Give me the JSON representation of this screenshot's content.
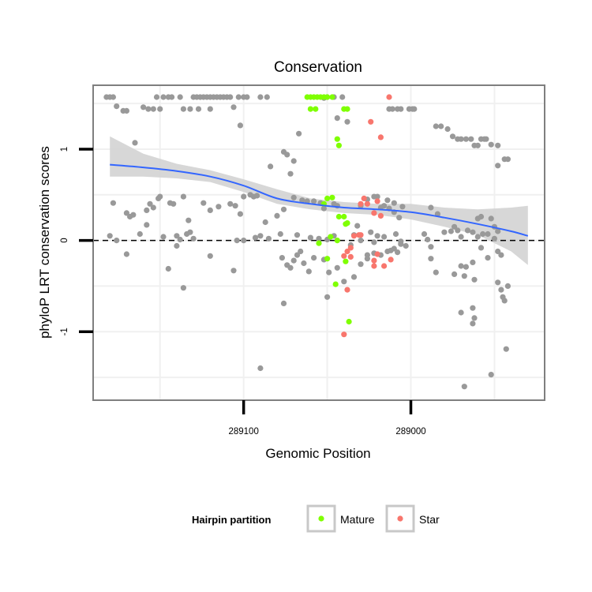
{
  "chart_data": {
    "type": "scatter",
    "title": "Conservation",
    "xlabel": "Genomic Position",
    "ylabel": "phyloP LRT conservation scores",
    "x_reversed": true,
    "xlim": [
      289190,
      288920
    ],
    "ylim": [
      -1.75,
      1.7
    ],
    "x_ticks": [
      289100,
      289000
    ],
    "x_tick_labels": [
      "289100",
      "289000"
    ],
    "y_ticks": [
      -1,
      0,
      1
    ],
    "y_tick_labels": [
      "-1",
      "0",
      "1"
    ],
    "grid": true,
    "reference_line": {
      "y": 0,
      "style": "dashed"
    },
    "legend": {
      "title": "Hairpin partition",
      "position": "bottom",
      "entries": [
        {
          "name": "Mature",
          "color": "#7FFF00"
        },
        {
          "name": "Star",
          "color": "#F8766D"
        }
      ]
    },
    "colors": {
      "none": "#999999",
      "Mature": "#7FFF00",
      "Star": "#F8766D",
      "smooth": "#3366FF",
      "band": "#d3d3d3"
    },
    "smooth": {
      "x": [
        289180,
        289160,
        289140,
        289120,
        289100,
        289080,
        289060,
        289040,
        289020,
        289000,
        288980,
        288960,
        288940,
        288930
      ],
      "y": [
        0.83,
        0.8,
        0.76,
        0.7,
        0.6,
        0.46,
        0.4,
        0.36,
        0.34,
        0.31,
        0.25,
        0.18,
        0.1,
        0.05
      ],
      "lower": [
        0.7,
        0.7,
        0.68,
        0.64,
        0.53,
        0.4,
        0.34,
        0.3,
        0.28,
        0.23,
        0.15,
        0.06,
        -0.12,
        -0.27
      ],
      "upper": [
        1.14,
        0.95,
        0.84,
        0.77,
        0.67,
        0.56,
        0.46,
        0.42,
        0.4,
        0.4,
        0.36,
        0.34,
        0.36,
        0.38
      ]
    },
    "series": [
      {
        "name": "",
        "color": "#999999",
        "points": [
          [
            289182,
            1.57
          ],
          [
            289180,
            1.57
          ],
          [
            289178,
            1.57
          ],
          [
            289176,
            1.47
          ],
          [
            289172,
            1.42
          ],
          [
            289170,
            1.42
          ],
          [
            289165,
            1.07
          ],
          [
            289170,
            0.3
          ],
          [
            289178,
            0.41
          ],
          [
            289180,
            0.05
          ],
          [
            289176,
            0.0
          ],
          [
            289168,
            0.26
          ],
          [
            289166,
            0.28
          ],
          [
            289170,
            -0.15
          ],
          [
            289162,
            0.07
          ],
          [
            289158,
            0.33
          ],
          [
            289156,
            0.4
          ],
          [
            289154,
            0.36
          ],
          [
            289158,
            0.17
          ],
          [
            289151,
            0.46
          ],
          [
            289150,
            0.48
          ],
          [
            289148,
            0.04
          ],
          [
            289145,
            -0.31
          ],
          [
            289144,
            0.41
          ],
          [
            289142,
            0.4
          ],
          [
            289140,
            0.05
          ],
          [
            289140,
            -0.06
          ],
          [
            289138,
            0.01
          ],
          [
            289136,
            -0.52
          ],
          [
            289136,
            0.48
          ],
          [
            289133,
            0.22
          ],
          [
            289132,
            0.09
          ],
          [
            289134,
            0.07
          ],
          [
            289130,
            0.02
          ],
          [
            289160,
            1.46
          ],
          [
            289157,
            1.44
          ],
          [
            289154,
            1.44
          ],
          [
            289152,
            1.57
          ],
          [
            289150,
            1.44
          ],
          [
            289148,
            1.57
          ],
          [
            289145,
            1.57
          ],
          [
            289143,
            1.57
          ],
          [
            289138,
            1.57
          ],
          [
            289136,
            1.44
          ],
          [
            289132,
            1.44
          ],
          [
            289130,
            1.57
          ],
          [
            289128,
            1.57
          ],
          [
            289126,
            1.57
          ],
          [
            289124,
            1.57
          ],
          [
            289122,
            1.57
          ],
          [
            289120,
            1.57
          ],
          [
            289118,
            1.57
          ],
          [
            289116,
            1.57
          ],
          [
            289114,
            1.57
          ],
          [
            289112,
            1.57
          ],
          [
            289110,
            1.57
          ],
          [
            289108,
            1.57
          ],
          [
            289106,
            1.46
          ],
          [
            289103,
            1.57
          ],
          [
            289100,
            1.57
          ],
          [
            289098,
            1.57
          ],
          [
            289090,
            1.57
          ],
          [
            289086,
            1.57
          ],
          [
            289102,
            1.26
          ],
          [
            289127,
            1.44
          ],
          [
            289120,
            1.44
          ],
          [
            289124,
            0.41
          ],
          [
            289120,
            0.33
          ],
          [
            289115,
            0.37
          ],
          [
            289108,
            0.4
          ],
          [
            289105,
            0.38
          ],
          [
            289102,
            0.29
          ],
          [
            289100,
            0.48
          ],
          [
            289096,
            0.5
          ],
          [
            289094,
            0.48
          ],
          [
            289092,
            0.49
          ],
          [
            289090,
            0.05
          ],
          [
            289087,
            0.2
          ],
          [
            289080,
            0.27
          ],
          [
            289076,
            0.34
          ],
          [
            289070,
            0.47
          ],
          [
            289065,
            0.44
          ],
          [
            289062,
            0.43
          ],
          [
            289058,
            0.43
          ],
          [
            289054,
            0.41
          ],
          [
            289052,
            0.35
          ],
          [
            289046,
            0.4
          ],
          [
            289044,
            0.38
          ],
          [
            289120,
            -0.17
          ],
          [
            289104,
            0.0
          ],
          [
            289093,
            0.03
          ],
          [
            289085,
            0.02
          ],
          [
            289078,
            0.07
          ],
          [
            289068,
            0.06
          ],
          [
            289060,
            0.03
          ],
          [
            289055,
            0.02
          ],
          [
            289050,
            0.01
          ],
          [
            289046,
            0.05
          ],
          [
            289100,
            0.0
          ],
          [
            289106,
            -0.33
          ],
          [
            289077,
            -0.19
          ],
          [
            289074,
            -0.27
          ],
          [
            289072,
            -0.3
          ],
          [
            289070,
            -0.22
          ],
          [
            289068,
            -0.16
          ],
          [
            289066,
            -0.12
          ],
          [
            289064,
            -0.25
          ],
          [
            289061,
            -0.34
          ],
          [
            289058,
            -0.19
          ],
          [
            289052,
            -0.21
          ],
          [
            289050,
            -0.62
          ],
          [
            289049,
            -0.35
          ],
          [
            289044,
            -0.3
          ],
          [
            289040,
            -0.45
          ],
          [
            289036,
            -0.05
          ],
          [
            289034,
            -0.4
          ],
          [
            289030,
            -0.26
          ],
          [
            289026,
            -0.16
          ],
          [
            289022,
            -0.14
          ],
          [
            289018,
            -0.16
          ],
          [
            289014,
            -0.12
          ],
          [
            289012,
            -0.11
          ],
          [
            289010,
            -0.09
          ],
          [
            289008,
            -0.13
          ],
          [
            289006,
            -0.04
          ],
          [
            289003,
            -0.06
          ],
          [
            289026,
            -0.2
          ],
          [
            289022,
            -0.02
          ],
          [
            289090,
            -1.4
          ],
          [
            289076,
            -0.69
          ],
          [
            289084,
            0.81
          ],
          [
            289076,
            0.97
          ],
          [
            289074,
            0.94
          ],
          [
            289070,
            0.87
          ],
          [
            289072,
            0.73
          ],
          [
            289067,
            1.17
          ],
          [
            289052,
            1.56
          ],
          [
            289050,
            1.57
          ],
          [
            289046,
            1.57
          ],
          [
            289041,
            1.57
          ],
          [
            289038,
            1.3
          ],
          [
            289044,
            1.34
          ],
          [
            289030,
            0.38
          ],
          [
            289026,
            0.45
          ],
          [
            289022,
            0.48
          ],
          [
            289020,
            0.48
          ],
          [
            289018,
            0.36
          ],
          [
            289016,
            0.38
          ],
          [
            289013,
            0.35
          ],
          [
            289010,
            0.31
          ],
          [
            289007,
            0.25
          ],
          [
            289005,
            0.37
          ],
          [
            289010,
            0.41
          ],
          [
            289014,
            0.44
          ],
          [
            289024,
            0.09
          ],
          [
            289032,
            0.16
          ],
          [
            289034,
            0.06
          ],
          [
            289020,
            0.05
          ],
          [
            289016,
            0.04
          ],
          [
            289009,
            0.07
          ],
          [
            289006,
            -0.01
          ],
          [
            289030,
            0.0
          ],
          [
            289013,
            1.44
          ],
          [
            289011,
            1.44
          ],
          [
            289008,
            1.44
          ],
          [
            289006,
            1.44
          ],
          [
            289001,
            1.44
          ],
          [
            288999,
            1.44
          ],
          [
            288998,
            1.44
          ],
          [
            288985,
            1.25
          ],
          [
            288982,
            1.25
          ],
          [
            288978,
            1.22
          ],
          [
            288975,
            1.14
          ],
          [
            288972,
            1.11
          ],
          [
            288970,
            1.11
          ],
          [
            288967,
            1.11
          ],
          [
            288964,
            1.11
          ],
          [
            288962,
            1.04
          ],
          [
            288960,
            1.04
          ],
          [
            288958,
            1.11
          ],
          [
            288956,
            1.11
          ],
          [
            288955,
            1.11
          ],
          [
            288952,
            1.05
          ],
          [
            288948,
            1.04
          ],
          [
            288948,
            0.82
          ],
          [
            288944,
            0.89
          ],
          [
            288942,
            0.89
          ],
          [
            288988,
            0.36
          ],
          [
            288984,
            0.29
          ],
          [
            288980,
            0.09
          ],
          [
            288976,
            0.1
          ],
          [
            288974,
            0.15
          ],
          [
            288972,
            0.11
          ],
          [
            288970,
            0.04
          ],
          [
            288966,
            0.11
          ],
          [
            288963,
            0.09
          ],
          [
            288960,
            0.04
          ],
          [
            288957,
            0.07
          ],
          [
            288954,
            0.07
          ],
          [
            288950,
            0.02
          ],
          [
            288948,
            0.1
          ],
          [
            288946,
            -0.16
          ],
          [
            288954,
            -0.19
          ],
          [
            288958,
            -0.08
          ],
          [
            288963,
            -0.24
          ],
          [
            288967,
            -0.29
          ],
          [
            288970,
            -0.28
          ],
          [
            288974,
            -0.37
          ],
          [
            288985,
            -0.35
          ],
          [
            288988,
            -0.2
          ],
          [
            288988,
            -0.07
          ],
          [
            288990,
            0.01
          ],
          [
            288992,
            0.07
          ],
          [
            288960,
            0.24
          ],
          [
            288958,
            0.26
          ],
          [
            288952,
            0.24
          ],
          [
            288950,
            0.15
          ],
          [
            288948,
            -0.12
          ],
          [
            288948,
            -0.46
          ],
          [
            288946,
            -0.54
          ],
          [
            288945,
            -0.62
          ],
          [
            288944,
            -0.66
          ],
          [
            288942,
            -0.5
          ],
          [
            288943,
            -1.19
          ],
          [
            288952,
            -1.47
          ],
          [
            288962,
            -0.85
          ],
          [
            288963,
            -0.91
          ],
          [
            288970,
            -0.79
          ],
          [
            288963,
            -0.74
          ],
          [
            288968,
            -0.39
          ],
          [
            288962,
            -0.43
          ],
          [
            288968,
            -1.6
          ]
        ]
      },
      {
        "name": "Mature",
        "color": "#7FFF00",
        "points": [
          [
            289062,
            1.57
          ],
          [
            289060,
            1.57
          ],
          [
            289058,
            1.57
          ],
          [
            289056,
            1.57
          ],
          [
            289054,
            1.57
          ],
          [
            289052,
            1.57
          ],
          [
            289050,
            1.57
          ],
          [
            289047,
            1.57
          ],
          [
            289060,
            1.44
          ],
          [
            289057,
            1.44
          ],
          [
            289038,
            1.44
          ],
          [
            289040,
            1.44
          ],
          [
            289044,
            1.11
          ],
          [
            289043,
            1.04
          ],
          [
            289052,
            0.4
          ],
          [
            289050,
            0.46
          ],
          [
            289047,
            0.47
          ],
          [
            289043,
            0.26
          ],
          [
            289040,
            0.26
          ],
          [
            289039,
            0.18
          ],
          [
            289038,
            0.19
          ],
          [
            289048,
            0.04
          ],
          [
            289055,
            -0.03
          ],
          [
            289044,
            0.0
          ],
          [
            289050,
            -0.2
          ],
          [
            289039,
            -0.23
          ],
          [
            289045,
            -0.48
          ],
          [
            289037,
            -0.89
          ]
        ]
      },
      {
        "name": "Star",
        "color": "#F8766D",
        "points": [
          [
            289013,
            1.57
          ],
          [
            289024,
            1.3
          ],
          [
            289018,
            1.13
          ],
          [
            289028,
            0.46
          ],
          [
            289026,
            0.4
          ],
          [
            289030,
            0.4
          ],
          [
            289020,
            0.43
          ],
          [
            289022,
            0.3
          ],
          [
            289018,
            0.27
          ],
          [
            289034,
            0.05
          ],
          [
            289031,
            0.06
          ],
          [
            289030,
            0.06
          ],
          [
            289036,
            -0.08
          ],
          [
            289038,
            -0.12
          ],
          [
            289040,
            -0.17
          ],
          [
            289036,
            -0.18
          ],
          [
            289020,
            -0.15
          ],
          [
            289022,
            -0.22
          ],
          [
            289022,
            -0.28
          ],
          [
            289016,
            -0.28
          ],
          [
            289012,
            -0.21
          ],
          [
            289038,
            -0.54
          ],
          [
            289040,
            -1.03
          ]
        ]
      }
    ]
  }
}
